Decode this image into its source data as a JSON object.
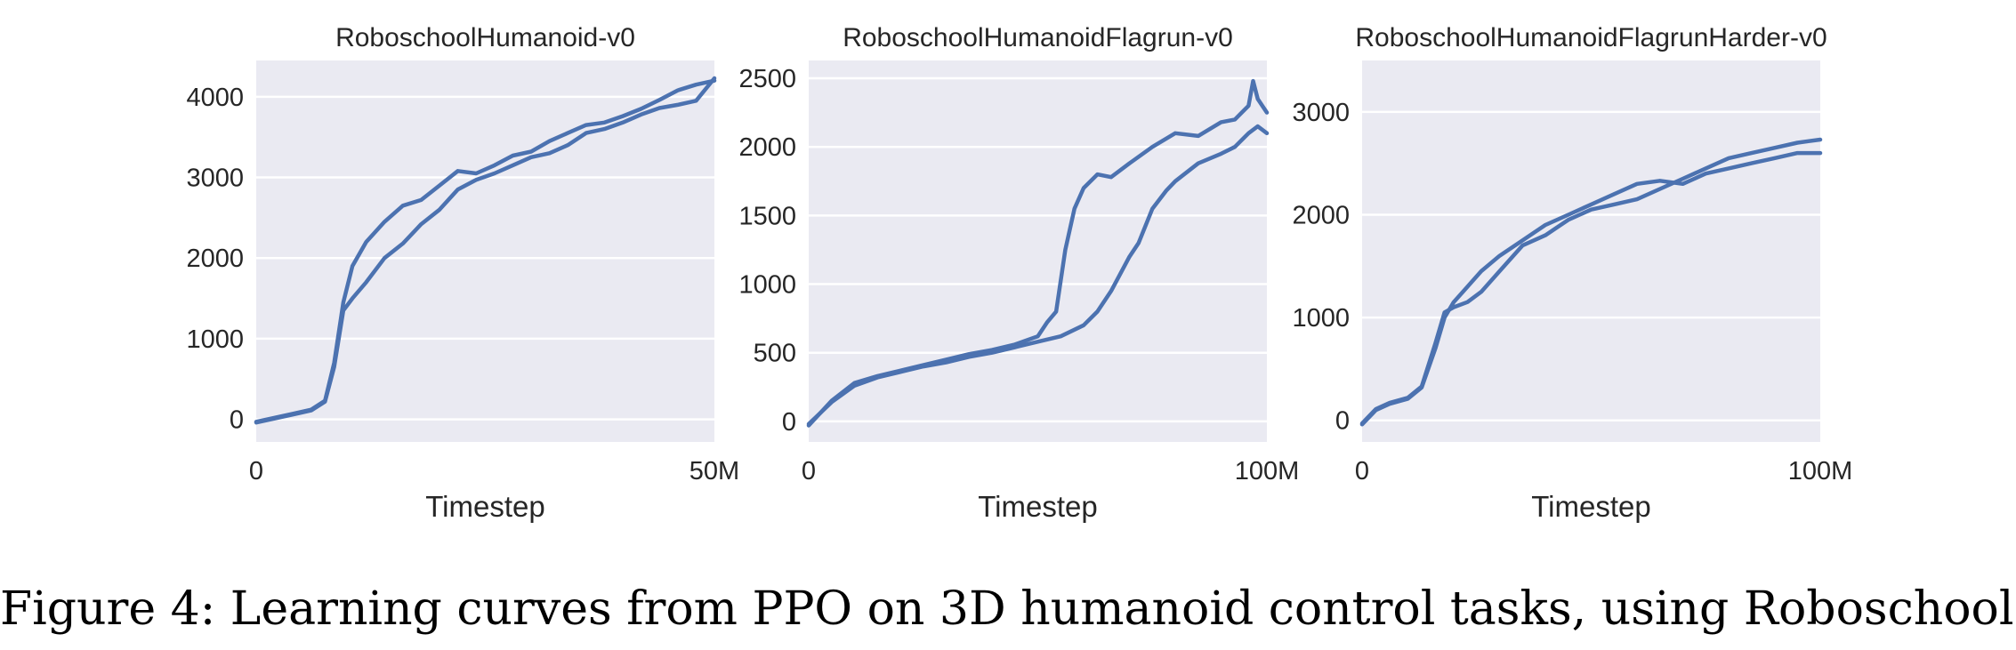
{
  "caption": "Figure 4: Learning curves from PPO on 3D humanoid control tasks, using Roboschool.",
  "colors": {
    "line": "#4c72b0",
    "plot_background": "#eaeaf2",
    "grid": "#ffffff"
  },
  "chart_data": [
    {
      "type": "line",
      "title": "RoboschoolHumanoid-v0",
      "xlabel": "Timestep",
      "ylabel": "",
      "x_range": [
        0,
        50000000
      ],
      "ylim": [
        -280,
        4450
      ],
      "xticks": [
        {
          "value": 0,
          "label": "0"
        },
        {
          "value": 50000000,
          "label": "50M"
        }
      ],
      "yticks": [
        0,
        1000,
        2000,
        3000,
        4000
      ],
      "grid": true,
      "series": [
        {
          "x": [
            0,
            2000000,
            4000000,
            6000000,
            7500000,
            8500000,
            9500000,
            10500000,
            12000000,
            14000000,
            16000000,
            18000000,
            20000000,
            22000000,
            24000000,
            26000000,
            28000000,
            30000000,
            32000000,
            34000000,
            36000000,
            38000000,
            40000000,
            42000000,
            44000000,
            46000000,
            48000000,
            50000000
          ],
          "y": [
            -30,
            20,
            70,
            120,
            230,
            700,
            1450,
            1900,
            2200,
            2450,
            2650,
            2720,
            2900,
            3080,
            3050,
            3150,
            3270,
            3320,
            3450,
            3550,
            3650,
            3680,
            3760,
            3850,
            3960,
            4080,
            4150,
            4200
          ]
        },
        {
          "x": [
            0,
            2000000,
            4000000,
            6000000,
            7500000,
            8500000,
            9500000,
            10500000,
            12000000,
            14000000,
            16000000,
            18000000,
            20000000,
            22000000,
            24000000,
            26000000,
            28000000,
            30000000,
            32000000,
            34000000,
            36000000,
            38000000,
            40000000,
            42000000,
            44000000,
            46000000,
            48000000,
            50000000
          ],
          "y": [
            -40,
            10,
            60,
            110,
            220,
            650,
            1350,
            1500,
            1700,
            2000,
            2180,
            2420,
            2600,
            2850,
            2970,
            3050,
            3150,
            3250,
            3300,
            3400,
            3550,
            3600,
            3680,
            3780,
            3860,
            3900,
            3950,
            4230
          ]
        }
      ]
    },
    {
      "type": "line",
      "title": "RoboschoolHumanoidFlagrun-v0",
      "xlabel": "Timestep",
      "ylabel": "",
      "x_range": [
        0,
        100000000
      ],
      "ylim": [
        -150,
        2630
      ],
      "xticks": [
        {
          "value": 0,
          "label": "0"
        },
        {
          "value": 100000000,
          "label": "100M"
        }
      ],
      "yticks": [
        0,
        500,
        1000,
        1500,
        2000,
        2500
      ],
      "grid": true,
      "series": [
        {
          "x": [
            0,
            5000000,
            10000000,
            15000000,
            20000000,
            25000000,
            30000000,
            35000000,
            40000000,
            45000000,
            50000000,
            52000000,
            54000000,
            56000000,
            58000000,
            60000000,
            63000000,
            66000000,
            70000000,
            75000000,
            80000000,
            85000000,
            90000000,
            93000000,
            96000000,
            97000000,
            98000000,
            100000000
          ],
          "y": [
            -30,
            150,
            280,
            330,
            370,
            410,
            450,
            490,
            520,
            560,
            620,
            720,
            800,
            1250,
            1550,
            1700,
            1800,
            1780,
            1880,
            2000,
            2100,
            2080,
            2180,
            2200,
            2300,
            2480,
            2350,
            2250
          ]
        },
        {
          "x": [
            0,
            5000000,
            10000000,
            15000000,
            20000000,
            25000000,
            30000000,
            35000000,
            40000000,
            45000000,
            50000000,
            55000000,
            60000000,
            63000000,
            66000000,
            70000000,
            72000000,
            75000000,
            78000000,
            80000000,
            85000000,
            90000000,
            93000000,
            96000000,
            98000000,
            100000000
          ],
          "y": [
            -20,
            140,
            260,
            320,
            360,
            400,
            430,
            470,
            500,
            540,
            580,
            620,
            700,
            800,
            950,
            1200,
            1300,
            1550,
            1680,
            1750,
            1880,
            1950,
            2000,
            2100,
            2150,
            2100
          ]
        }
      ]
    },
    {
      "type": "line",
      "title": "RoboschoolHumanoidFlagrunHarder-v0",
      "xlabel": "Timestep",
      "ylabel": "",
      "x_range": [
        0,
        100000000
      ],
      "ylim": [
        -210,
        3500
      ],
      "xticks": [
        {
          "value": 0,
          "label": "0"
        },
        {
          "value": 100000000,
          "label": "100M"
        }
      ],
      "yticks": [
        0,
        1000,
        2000,
        3000
      ],
      "grid": true,
      "series": [
        {
          "x": [
            0,
            3000000,
            6000000,
            10000000,
            13000000,
            16000000,
            18000000,
            20000000,
            23000000,
            26000000,
            30000000,
            35000000,
            40000000,
            45000000,
            50000000,
            55000000,
            60000000,
            65000000,
            70000000,
            75000000,
            80000000,
            85000000,
            90000000,
            95000000,
            100000000
          ],
          "y": [
            -40,
            100,
            160,
            210,
            320,
            700,
            1000,
            1150,
            1300,
            1450,
            1600,
            1750,
            1900,
            2000,
            2100,
            2200,
            2300,
            2330,
            2300,
            2400,
            2450,
            2500,
            2550,
            2600,
            2600
          ]
        },
        {
          "x": [
            0,
            3000000,
            6000000,
            10000000,
            13000000,
            16000000,
            18000000,
            20000000,
            23000000,
            26000000,
            30000000,
            35000000,
            40000000,
            45000000,
            50000000,
            55000000,
            60000000,
            65000000,
            70000000,
            75000000,
            80000000,
            85000000,
            90000000,
            95000000,
            100000000
          ],
          "y": [
            -30,
            110,
            170,
            220,
            330,
            750,
            1050,
            1100,
            1150,
            1250,
            1450,
            1700,
            1800,
            1950,
            2050,
            2100,
            2150,
            2250,
            2350,
            2450,
            2550,
            2600,
            2650,
            2700,
            2730
          ]
        }
      ]
    }
  ]
}
